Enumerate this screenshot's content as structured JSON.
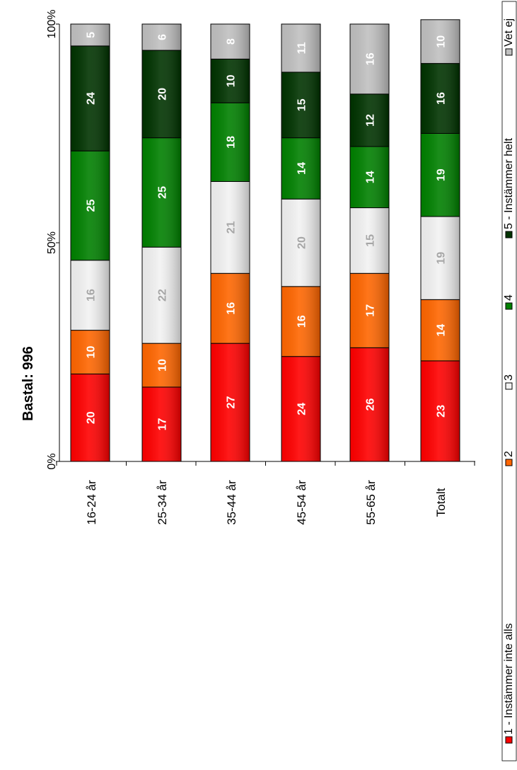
{
  "chart_data": {
    "type": "bar",
    "stacked": true,
    "percent_scale": true,
    "orientation": "rotated-90",
    "title": "Bastal: 996",
    "categories": [
      "16-24 år",
      "25-34 år",
      "35-44 år",
      "45-54 år",
      "55-65 år",
      "Totalt"
    ],
    "series": [
      {
        "name": "1 - Instämmer inte alls",
        "color": "#ff0000",
        "label_color": "#ffffff",
        "values": [
          20,
          17,
          27,
          24,
          26,
          23
        ]
      },
      {
        "name": "2",
        "color": "#ff6600",
        "label_color": "#ffffff",
        "values": [
          10,
          10,
          16,
          16,
          17,
          14
        ]
      },
      {
        "name": "3",
        "color": "#f2f2f2",
        "label_color": "#a6a6a6",
        "values": [
          16,
          22,
          21,
          20,
          15,
          19
        ]
      },
      {
        "name": "4",
        "color": "#008000",
        "label_color": "#ffffff",
        "values": [
          25,
          25,
          18,
          14,
          14,
          19
        ]
      },
      {
        "name": "5 - Instämmer helt",
        "color": "#003300",
        "label_color": "#ffffff",
        "values": [
          24,
          20,
          10,
          15,
          12,
          16
        ]
      },
      {
        "name": "Vet ej",
        "color": "#c0c0c0",
        "label_color": "#ffffff",
        "values": [
          5,
          6,
          8,
          11,
          16,
          10
        ]
      }
    ],
    "y_ticks": [
      "0%",
      "50%",
      "100%"
    ],
    "ylim": [
      0,
      100
    ],
    "legend_position": "right",
    "grid": false
  }
}
